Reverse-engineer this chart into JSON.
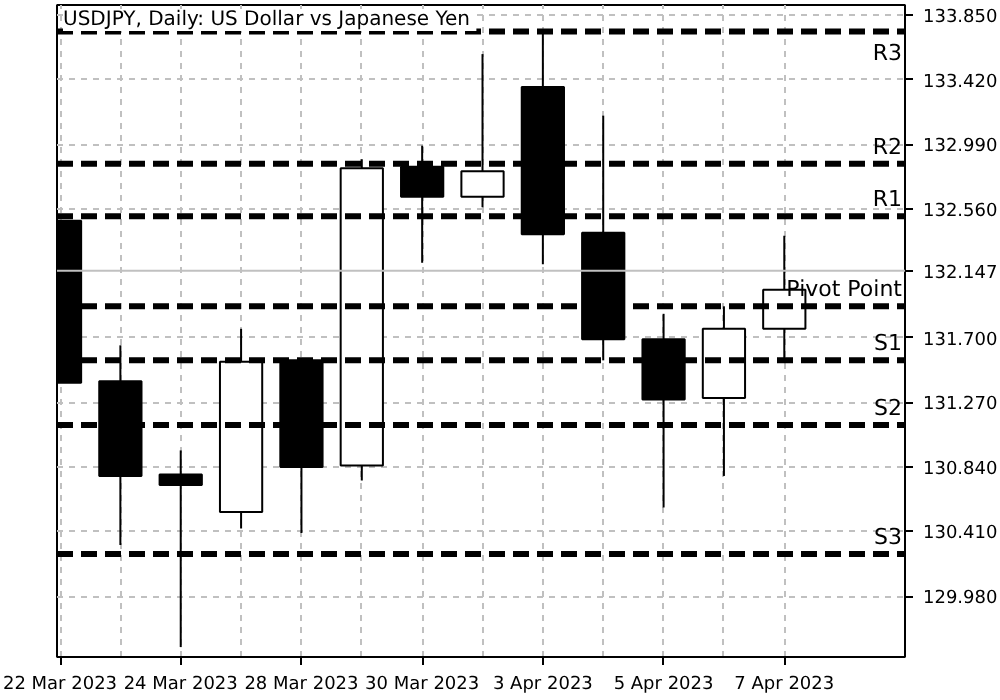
{
  "chart_data": {
    "type": "candlestick",
    "title": "USDJPY, Daily:  US Dollar vs Japanese Yen",
    "categories": [
      "22 Mar 2023",
      null,
      "24 Mar 2023",
      null,
      "28 Mar 2023",
      null,
      "30 Mar 2023",
      null,
      "3 Apr 2023",
      null,
      "5 Apr 2023",
      null,
      "7 Apr 2023"
    ],
    "ohlc": [
      [
        132.48,
        132.48,
        131.4,
        131.4
      ],
      [
        131.41,
        131.65,
        130.32,
        130.78
      ],
      [
        130.79,
        130.95,
        129.64,
        130.72
      ],
      [
        130.54,
        131.76,
        130.43,
        131.54
      ],
      [
        131.55,
        131.56,
        130.4,
        130.84
      ],
      [
        130.85,
        132.89,
        130.75,
        132.83
      ],
      [
        132.84,
        132.98,
        132.2,
        132.64
      ],
      [
        132.64,
        133.59,
        132.57,
        132.81
      ],
      [
        133.37,
        133.74,
        132.19,
        132.39
      ],
      [
        132.4,
        133.18,
        131.55,
        131.69
      ],
      [
        131.69,
        131.86,
        130.57,
        131.29
      ],
      [
        131.3,
        131.91,
        130.78,
        131.76
      ],
      [
        131.76,
        132.38,
        131.55,
        132.02
      ]
    ],
    "colors": [
      "#000000",
      "#000000",
      "#000000",
      "#ffffff",
      "#000000",
      "#ffffff",
      "#000000",
      "#ffffff",
      "#000000",
      "#000000",
      "#000000",
      "#ffffff",
      "#ffffff"
    ],
    "ylim": [
      129.574,
      133.917
    ],
    "yticks": [
      {
        "value": 133.85,
        "label": "133.850"
      },
      {
        "value": 133.42,
        "label": "133.420"
      },
      {
        "value": 132.99,
        "label": "132.990"
      },
      {
        "value": 132.56,
        "label": "132.560"
      },
      {
        "value": 131.7,
        "label": "131.700"
      },
      {
        "value": 131.27,
        "label": "131.270"
      },
      {
        "value": 130.84,
        "label": "130.840"
      },
      {
        "value": 130.41,
        "label": "130.410"
      },
      {
        "value": 129.98,
        "label": "129.980"
      }
    ],
    "grid": true,
    "ref_lines": [
      {
        "axis": "y",
        "value": 133.74,
        "label": "R3",
        "color": "#000000",
        "line_style": "dashed"
      },
      {
        "axis": "y",
        "value": 132.86,
        "label": "R2",
        "color": "#000000",
        "line_style": "dashed"
      },
      {
        "axis": "y",
        "value": 132.51,
        "label": "R1",
        "color": "#000000",
        "line_style": "dashed"
      },
      {
        "axis": "y",
        "value": 131.91,
        "label": "Pivot Point",
        "color": "#000000",
        "line_style": "dashed"
      },
      {
        "axis": "y",
        "value": 131.55,
        "label": "S1",
        "color": "#000000",
        "line_style": "dashed"
      },
      {
        "axis": "y",
        "value": 131.12,
        "label": "S2",
        "color": "#000000",
        "line_style": "dashed"
      },
      {
        "axis": "y",
        "value": 130.26,
        "label": "S3",
        "color": "#000000",
        "line_style": "dashed"
      },
      {
        "axis": "y",
        "value": 132.147,
        "label": "132.147",
        "color": "#c0c0c0",
        "line_style": "solid"
      }
    ]
  }
}
